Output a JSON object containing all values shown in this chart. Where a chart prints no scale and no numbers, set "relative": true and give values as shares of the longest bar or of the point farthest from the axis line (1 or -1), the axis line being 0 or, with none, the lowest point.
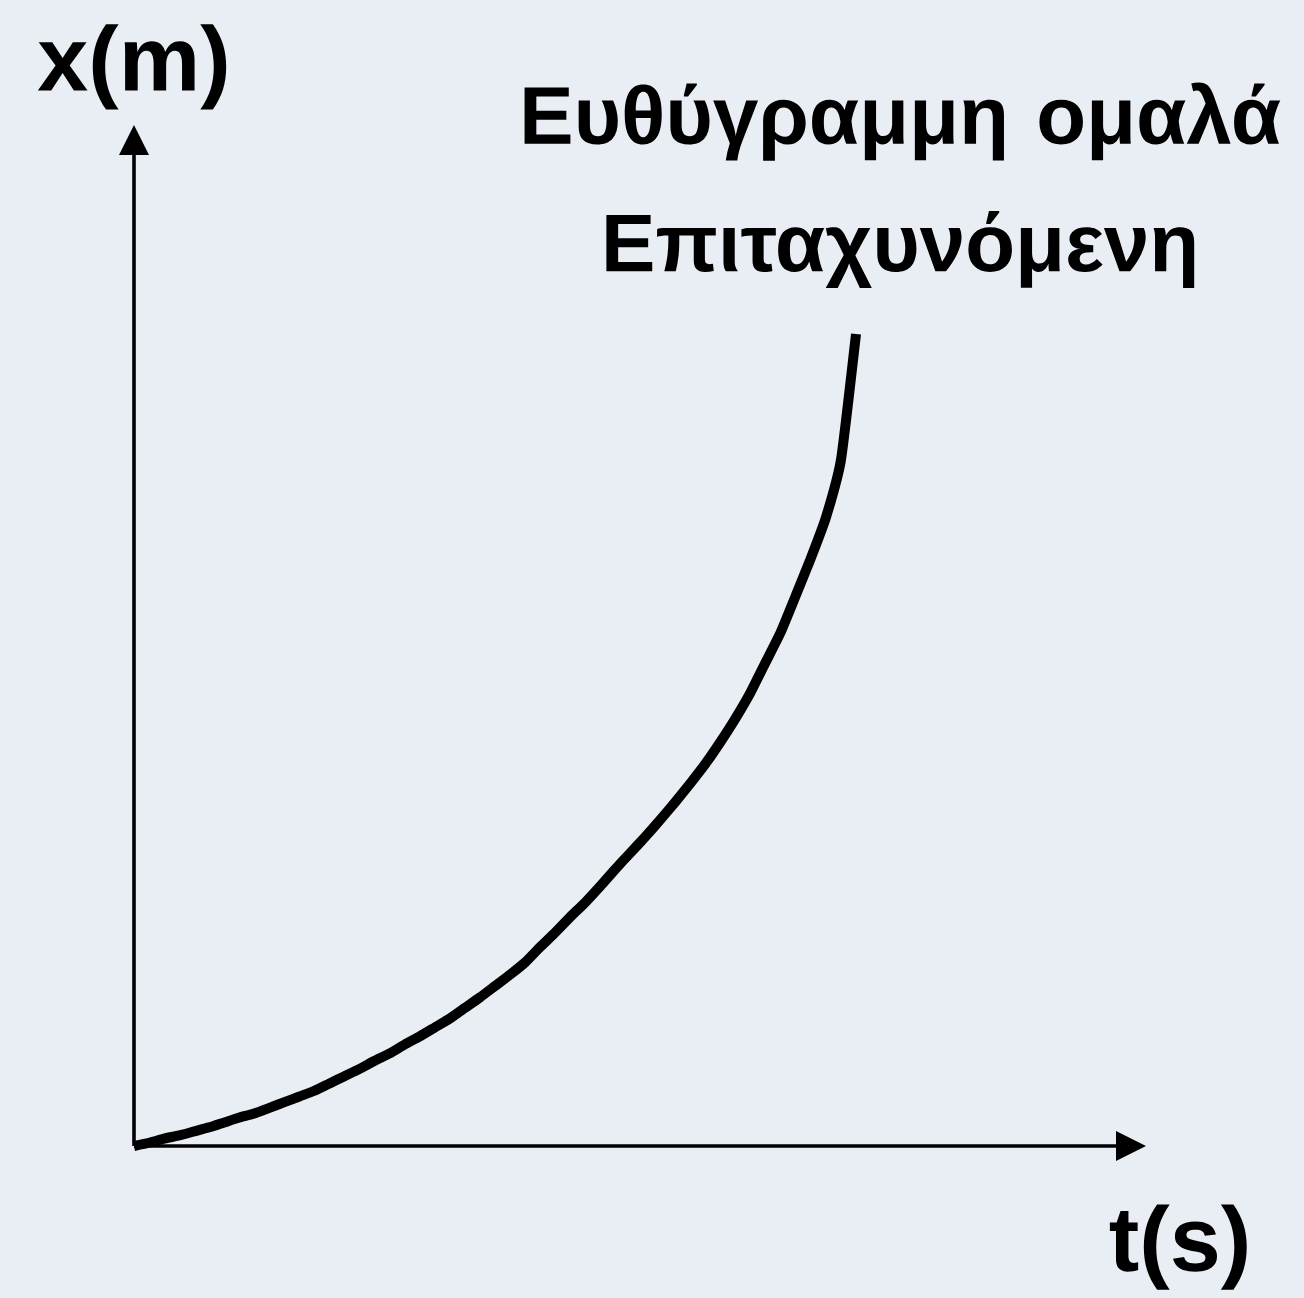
{
  "chart_data": {
    "type": "line",
    "title": "Ευθύγραμμη ομαλά Επιταχυνόμενη",
    "xlabel": "t(s)",
    "ylabel": "x(m)",
    "relative": true,
    "categories": [
      null,
      null,
      null,
      null,
      null,
      null,
      null,
      null,
      null,
      null,
      null,
      null,
      null,
      null,
      null,
      null,
      null,
      null,
      null,
      null,
      null,
      null,
      null,
      null,
      null,
      null,
      null,
      null,
      null,
      null,
      null,
      null,
      null,
      null,
      null,
      null,
      null,
      null,
      null,
      null,
      null,
      null,
      null,
      null,
      null,
      null,
      null,
      null,
      null
    ],
    "values": [
      0,
      0.004,
      0.009,
      0.013,
      0.018,
      0.023,
      0.029,
      0.035,
      0.04,
      0.047,
      0.054,
      0.061,
      0.068,
      0.077,
      0.086,
      0.095,
      0.105,
      0.114,
      0.125,
      0.135,
      0.146,
      0.157,
      0.17,
      0.183,
      0.197,
      0.211,
      0.226,
      0.245,
      0.263,
      0.282,
      0.3,
      0.32,
      0.341,
      0.361,
      0.381,
      0.402,
      0.424,
      0.447,
      0.471,
      0.498,
      0.527,
      0.559,
      0.596,
      0.633,
      0.678,
      0.724,
      0.774,
      0.845,
      1
    ],
    "color": "#000000",
    "marker": "none",
    "line_style": "solid"
  }
}
